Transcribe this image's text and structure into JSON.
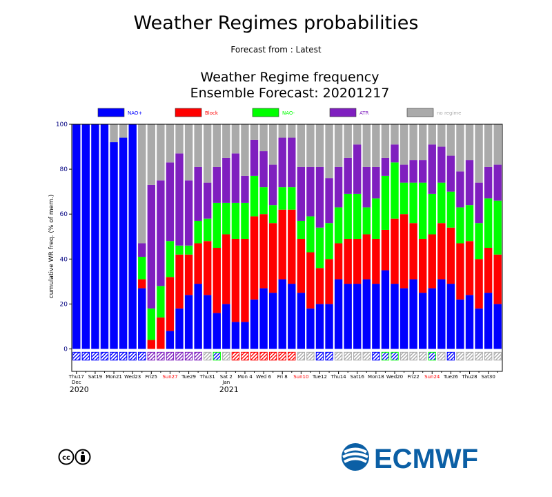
{
  "page": {
    "title": "Weather Regimes probabilities",
    "subtitle": "Forecast from : Latest",
    "logos": {
      "license": "cc-by",
      "org": "ECMWF"
    }
  },
  "chart_data": {
    "type": "bar",
    "stacked": true,
    "title": "Weather Regime frequency",
    "subtitle": "Ensemble Forecast: 20201217",
    "xlabel": "",
    "ylabel": "cumulative WR freq. (% of mem.)",
    "ylim": [
      -10,
      100
    ],
    "yticks": [
      0,
      20,
      40,
      60,
      80,
      100
    ],
    "legend_position": "top",
    "grid": false,
    "colors": {
      "NAO+": "#0000ff",
      "Block": "#ff0000",
      "NAO-": "#00ff00",
      "ATR": "#7f1fbf",
      "no regime": "#aaaaaa"
    },
    "legend_text_colors": {
      "NAO+": "#0000ff",
      "Block": "#ff0000",
      "NAO-": "#00ff00",
      "ATR": "#7f1fbf",
      "no regime": "#aaaaaa"
    },
    "series": [
      {
        "name": "NAO+",
        "values": [
          100,
          100,
          100,
          100,
          92,
          94,
          100,
          27,
          0,
          0,
          8,
          18,
          24,
          29,
          24,
          16,
          20,
          12,
          12,
          22,
          27,
          25,
          31,
          29,
          25,
          18,
          20,
          20,
          31,
          29,
          29,
          31,
          29,
          35,
          29,
          27,
          31,
          25,
          27,
          31,
          29,
          22,
          24,
          18,
          25,
          20
        ]
      },
      {
        "name": "Block",
        "values": [
          0,
          0,
          0,
          0,
          0,
          0,
          0,
          4,
          4,
          14,
          24,
          24,
          18,
          18,
          24,
          29,
          31,
          37,
          37,
          37,
          33,
          31,
          31,
          33,
          24,
          25,
          16,
          20,
          16,
          20,
          20,
          20,
          20,
          18,
          29,
          33,
          25,
          24,
          24,
          25,
          25,
          25,
          24,
          22,
          20,
          22
        ]
      },
      {
        "name": "NAO-",
        "values": [
          0,
          0,
          0,
          0,
          0,
          0,
          0,
          10,
          14,
          14,
          16,
          4,
          4,
          10,
          10,
          20,
          14,
          16,
          16,
          18,
          12,
          8,
          10,
          10,
          8,
          16,
          18,
          16,
          16,
          20,
          20,
          12,
          18,
          24,
          25,
          14,
          18,
          25,
          18,
          18,
          16,
          16,
          16,
          16,
          22,
          24
        ]
      },
      {
        "name": "ATR",
        "values": [
          0,
          0,
          0,
          0,
          0,
          0,
          0,
          6,
          55,
          47,
          35,
          41,
          29,
          24,
          16,
          16,
          20,
          22,
          12,
          16,
          16,
          18,
          22,
          22,
          24,
          22,
          27,
          20,
          18,
          16,
          22,
          18,
          14,
          8,
          8,
          8,
          10,
          10,
          22,
          16,
          16,
          16,
          20,
          18,
          14,
          16
        ]
      },
      {
        "name": "no regime",
        "values": [
          0,
          0,
          0,
          0,
          8,
          6,
          0,
          53,
          27,
          25,
          17,
          13,
          25,
          19,
          26,
          19,
          15,
          13,
          23,
          7,
          12,
          18,
          6,
          6,
          19,
          19,
          19,
          24,
          19,
          15,
          9,
          19,
          19,
          15,
          9,
          18,
          16,
          16,
          9,
          10,
          14,
          21,
          16,
          26,
          19,
          18
        ]
      }
    ],
    "dominant_regime": [
      "NAO+",
      "NAO+",
      "NAO+",
      "NAO+",
      "NAO+",
      "NAO+",
      "NAO+",
      "NAO+",
      "ATR",
      "ATR",
      "ATR",
      "ATR",
      "ATR",
      "ATR",
      "no regime",
      "NAO-",
      "no regime",
      "Block",
      "Block",
      "Block",
      "Block",
      "Block",
      "Block",
      "Block",
      "no regime",
      "no regime",
      "NAO+",
      "NAO+",
      "no regime",
      "no regime",
      "no regime",
      "no regime",
      "NAO+",
      "NAO-",
      "NAO-",
      "no regime",
      "no regime",
      "no regime",
      "NAO-",
      "no regime",
      "NAO+",
      "no regime",
      "no regime",
      "no regime",
      "no regime",
      "no regime"
    ],
    "xticks": [
      {
        "index": 0,
        "label": "Thu17",
        "sunday": false,
        "extra": "Dec"
      },
      {
        "index": 2,
        "label": "Sat19",
        "sunday": false
      },
      {
        "index": 4,
        "label": "Mon21",
        "sunday": false
      },
      {
        "index": 6,
        "label": "Wed23",
        "sunday": false
      },
      {
        "index": 8,
        "label": "Fri25",
        "sunday": false
      },
      {
        "index": 10,
        "label": "Sun27",
        "sunday": true
      },
      {
        "index": 12,
        "label": "Tue29",
        "sunday": false
      },
      {
        "index": 14,
        "label": "Thu31",
        "sunday": false
      },
      {
        "index": 16,
        "label": "Sat 2",
        "sunday": false,
        "extra": "Jan"
      },
      {
        "index": 18,
        "label": "Mon 4",
        "sunday": false
      },
      {
        "index": 20,
        "label": "Wed 6",
        "sunday": false
      },
      {
        "index": 22,
        "label": "Fri 8",
        "sunday": false
      },
      {
        "index": 24,
        "label": "Sun10",
        "sunday": true
      },
      {
        "index": 26,
        "label": "Tue12",
        "sunday": false
      },
      {
        "index": 28,
        "label": "Thu14",
        "sunday": false
      },
      {
        "index": 30,
        "label": "Sat16",
        "sunday": false
      },
      {
        "index": 32,
        "label": "Mon18",
        "sunday": false
      },
      {
        "index": 34,
        "label": "Wed20",
        "sunday": false
      },
      {
        "index": 36,
        "label": "Fri22",
        "sunday": false
      },
      {
        "index": 38,
        "label": "Sun24",
        "sunday": true
      },
      {
        "index": 40,
        "label": "Tue26",
        "sunday": false
      },
      {
        "index": 42,
        "label": "Thu28",
        "sunday": false
      },
      {
        "index": 44,
        "label": "Sat30",
        "sunday": false
      }
    ],
    "year_labels": [
      {
        "index": 0,
        "label": "2020"
      },
      {
        "index": 16,
        "label": "2021"
      }
    ]
  }
}
